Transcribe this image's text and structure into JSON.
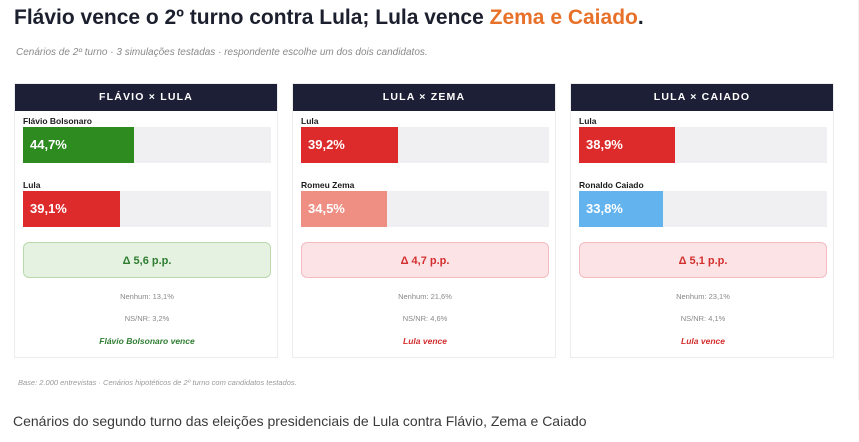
{
  "header": {
    "title_main": "Flávio vence o 2º turno contra Lula; Lula vence ",
    "title_accent": "Zema e Caiado",
    "title_end": ".",
    "subtitle": "Cenários de 2º turno · 3 simulações testadas · respondente escolhe um dos dois candidatos."
  },
  "colors": {
    "header_bg": "#1c1f36",
    "accent": "#e8712a",
    "flavio": "#2e8b1f",
    "lula": "#dd2a2a",
    "zema": "#ef8f84",
    "caiado": "#62b3ee",
    "win_green_bg": "#e6f2e1",
    "win_green_border": "#b9d9ad",
    "win_green_text": "#2e7d32",
    "win_red_bg": "#fce4e6",
    "win_red_border": "#f3bcc1",
    "win_red_text": "#d32f2f"
  },
  "chart_data": [
    {
      "type": "bar",
      "title": "FLÁVIO × LULA",
      "categories": [
        "Flávio Bolsonaro",
        "Lula"
      ],
      "values": [
        44.7,
        39.1
      ],
      "value_labels": [
        "44,7%",
        "39,1%"
      ],
      "unit": "%",
      "ylim": [
        0,
        100
      ],
      "delta": "Δ 5,6 p.p.",
      "nenhum": "Nenhum: 13,1%",
      "nsnr": "NS/NR: 3,2%",
      "verdict": "Flávio Bolsonaro vence",
      "theme": "green"
    },
    {
      "type": "bar",
      "title": "LULA × ZEMA",
      "categories": [
        "Lula",
        "Romeu Zema"
      ],
      "values": [
        39.2,
        34.5
      ],
      "value_labels": [
        "39,2%",
        "34,5%"
      ],
      "unit": "%",
      "ylim": [
        0,
        100
      ],
      "delta": "Δ 4,7 p.p.",
      "nenhum": "Nenhum: 21,6%",
      "nsnr": "NS/NR: 4,6%",
      "verdict": "Lula vence",
      "theme": "red"
    },
    {
      "type": "bar",
      "title": "LULA × CAIADO",
      "categories": [
        "Lula",
        "Ronaldo Caiado"
      ],
      "values": [
        38.9,
        33.8
      ],
      "value_labels": [
        "38,9%",
        "33,8%"
      ],
      "unit": "%",
      "ylim": [
        0,
        100
      ],
      "delta": "Δ 5,1 p.p.",
      "nenhum": "Nenhum: 23,1%",
      "nsnr": "NS/NR: 4,1%",
      "verdict": "Lula vence",
      "theme": "red"
    }
  ],
  "bar_colors": [
    [
      "flavio",
      "lula"
    ],
    [
      "lula",
      "zema"
    ],
    [
      "lula",
      "caiado"
    ]
  ],
  "footer": {
    "base": "Base: 2.000 entrevistas · Cenários hipotéticos de 2º turno com candidatos testados.",
    "caption": "Cenários do segundo turno das eleições presidenciais de Lula contra Flávio, Zema e Caiado"
  }
}
